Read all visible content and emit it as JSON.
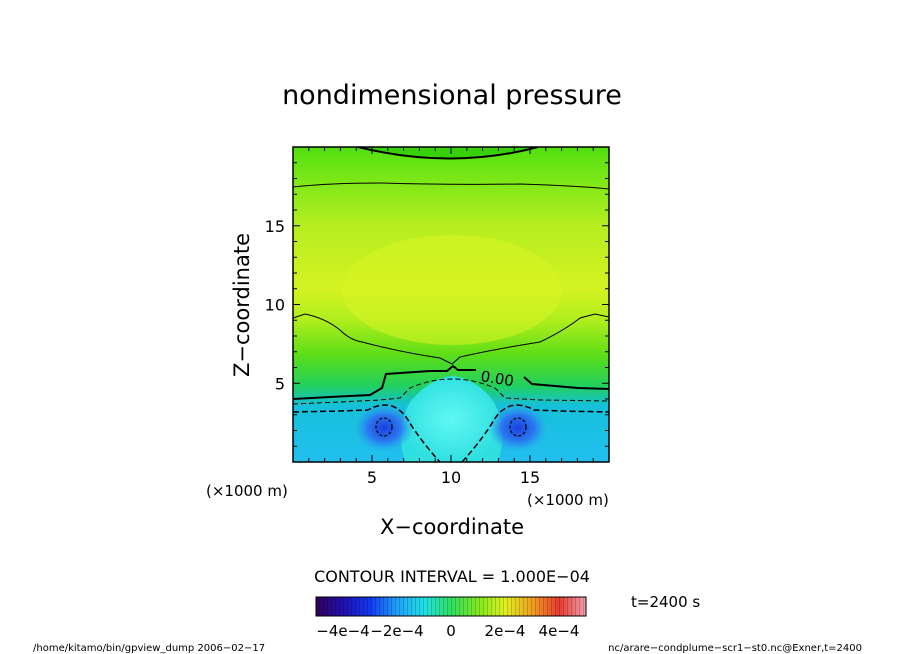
{
  "chart_data": {
    "type": "heatmap",
    "title": "nondimensional pressure",
    "xlabel": "X−coordinate",
    "ylabel": "Z−coordinate",
    "x_unit": "(×1000 m)",
    "z_unit": "(×1000 m)",
    "xlim": [
      0,
      20
    ],
    "ylim": [
      0,
      20
    ],
    "x_ticks": [
      5,
      10,
      15
    ],
    "y_ticks": [
      5,
      10,
      15
    ],
    "x_tick_labels": [
      "5",
      "10",
      "15"
    ],
    "y_tick_labels": [
      "5",
      "10",
      "15"
    ],
    "contour_interval_text": "CONTOUR INTERVAL = 1.000E−04",
    "contour_interval": 0.0001,
    "contour_label": "0.00",
    "colorbar": {
      "range": [
        -0.0005,
        0.0005
      ],
      "tick_values": [
        -0.0004,
        -0.0002,
        0,
        0.0002,
        0.0004
      ],
      "tick_labels": [
        "−4e−4",
        "−2e−4",
        "0",
        "2e−4",
        "4e−4"
      ]
    },
    "time_text": "t=2400 s",
    "footer_left": "/home/kitamo/bin/gpview_dump  2006−02−17",
    "footer_right": "nc/arare−condplume−scr1−st0.nc@Exner,t=2400"
  }
}
